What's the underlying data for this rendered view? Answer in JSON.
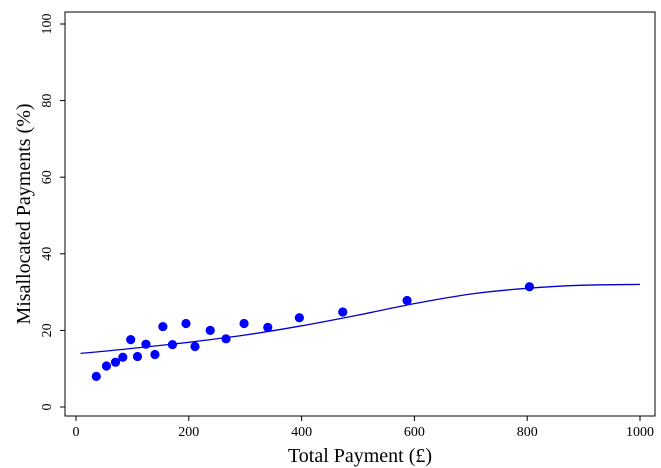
{
  "chart_data": {
    "type": "scatter",
    "title": "",
    "xlabel": "Total Payment (£)",
    "ylabel": "Misallocated Payments (%)",
    "xlim": [
      0,
      1000
    ],
    "ylim": [
      0,
      100
    ],
    "x_ticks": [
      0,
      200,
      400,
      600,
      800,
      1000
    ],
    "y_ticks": [
      0,
      20,
      40,
      60,
      80,
      100
    ],
    "x_tick_labels": [
      "0",
      "200",
      "400",
      "600",
      "800",
      "1000"
    ],
    "y_tick_labels": [
      "0",
      "20",
      "40",
      "60",
      "80",
      "100"
    ],
    "grid": false,
    "legend": "none",
    "point_color": "#0000ff",
    "line_color": "#0000cc",
    "points": [
      {
        "x": 36,
        "y": 8.0
      },
      {
        "x": 54,
        "y": 10.7
      },
      {
        "x": 70,
        "y": 11.7
      },
      {
        "x": 83,
        "y": 13.0
      },
      {
        "x": 97,
        "y": 17.6
      },
      {
        "x": 109,
        "y": 13.2
      },
      {
        "x": 124,
        "y": 16.4
      },
      {
        "x": 140,
        "y": 13.7
      },
      {
        "x": 154,
        "y": 21.0
      },
      {
        "x": 171,
        "y": 16.3
      },
      {
        "x": 195,
        "y": 21.8
      },
      {
        "x": 211,
        "y": 15.8
      },
      {
        "x": 238,
        "y": 20.0
      },
      {
        "x": 266,
        "y": 17.8
      },
      {
        "x": 298,
        "y": 21.8
      },
      {
        "x": 340,
        "y": 20.8
      },
      {
        "x": 396,
        "y": 23.3
      },
      {
        "x": 473,
        "y": 24.8
      },
      {
        "x": 587,
        "y": 27.8
      },
      {
        "x": 804,
        "y": 31.4
      }
    ],
    "fit_line": [
      {
        "x": 8,
        "y": 14.0
      },
      {
        "x": 100,
        "y": 15.3
      },
      {
        "x": 200,
        "y": 16.9
      },
      {
        "x": 300,
        "y": 18.8
      },
      {
        "x": 400,
        "y": 21.2
      },
      {
        "x": 500,
        "y": 24.0
      },
      {
        "x": 600,
        "y": 27.0
      },
      {
        "x": 700,
        "y": 29.5
      },
      {
        "x": 800,
        "y": 31.0
      },
      {
        "x": 900,
        "y": 31.8
      },
      {
        "x": 1000,
        "y": 32.0
      }
    ]
  }
}
